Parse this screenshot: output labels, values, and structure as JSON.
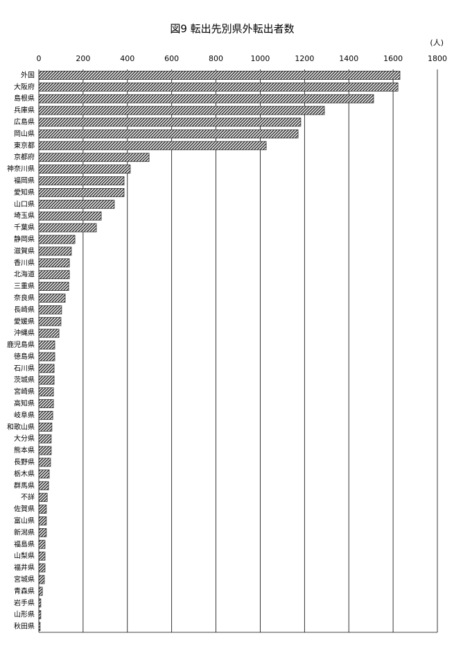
{
  "chart_data": {
    "type": "bar",
    "orientation": "horizontal",
    "title": "図9  転出先別県外転出者数",
    "unit": "(人)",
    "categories": [
      "外国",
      "大阪府",
      "島根県",
      "兵庫県",
      "広島県",
      "岡山県",
      "東京都",
      "京都府",
      "神奈川県",
      "福岡県",
      "愛知県",
      "山口県",
      "埼玉県",
      "千葉県",
      "静岡県",
      "滋賀県",
      "香川県",
      "北海道",
      "三重県",
      "奈良県",
      "長崎県",
      "愛媛県",
      "沖縄県",
      "鹿児島県",
      "徳島県",
      "石川県",
      "茨城県",
      "宮崎県",
      "高知県",
      "岐阜県",
      "和歌山県",
      "大分県",
      "熊本県",
      "長野県",
      "栃木県",
      "群馬県",
      "不詳",
      "佐賀県",
      "富山県",
      "新潟県",
      "福島県",
      "山梨県",
      "福井県",
      "宮城県",
      "青森県",
      "岩手県",
      "山形県",
      "秋田県"
    ],
    "values": [
      1631,
      1622,
      1512,
      1290,
      1183,
      1171,
      1027,
      498,
      413,
      385,
      385,
      341,
      282,
      260,
      163,
      147,
      138,
      138,
      135,
      119,
      103,
      100,
      91,
      72,
      72,
      69,
      69,
      66,
      66,
      63,
      59,
      56,
      56,
      53,
      47,
      44,
      38,
      34,
      34,
      34,
      28,
      28,
      28,
      25,
      16,
      9,
      9,
      6
    ],
    "color": "#333333",
    "xlim": [
      0,
      1800
    ],
    "xticks": [
      0,
      200,
      400,
      600,
      800,
      1000,
      1200,
      1400,
      1600,
      1800
    ],
    "grid": true
  }
}
